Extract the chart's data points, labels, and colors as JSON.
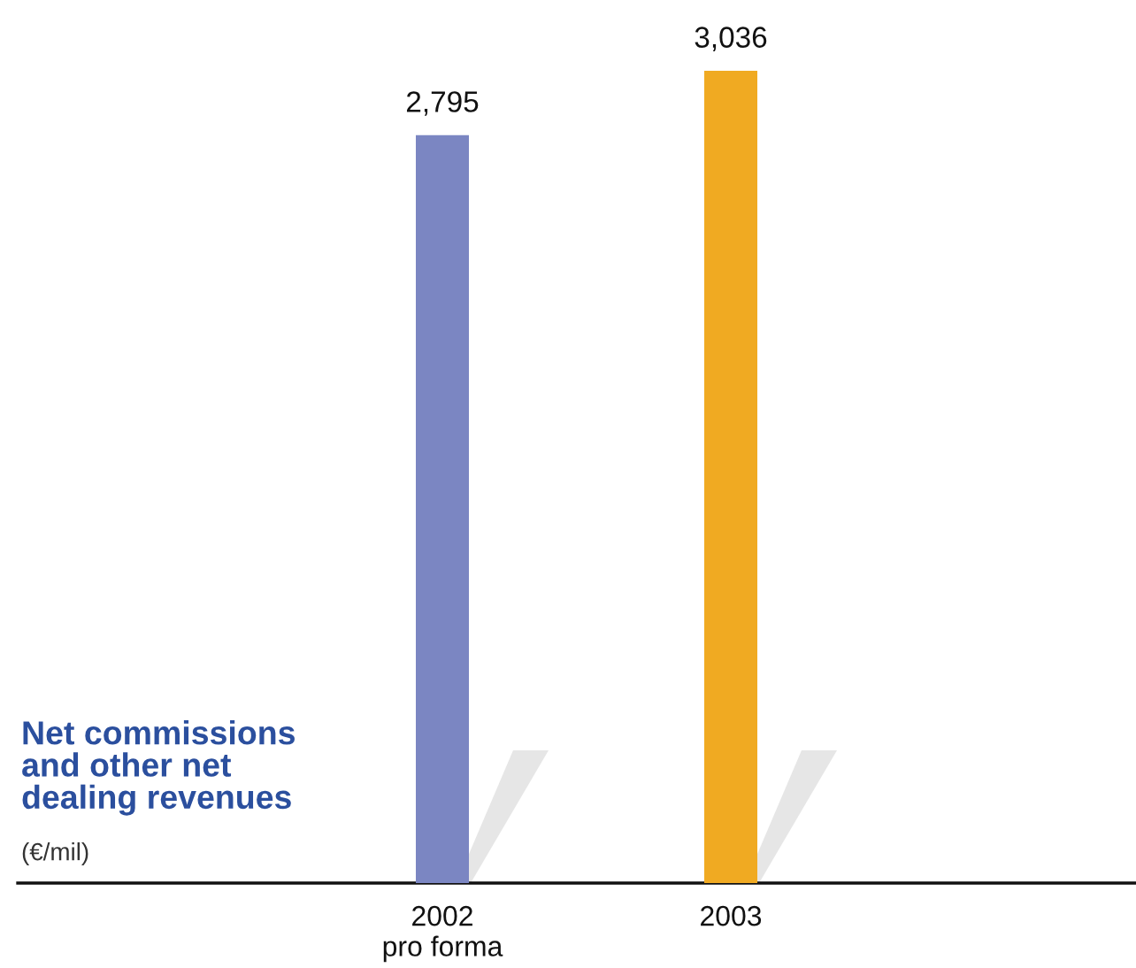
{
  "chart_data": {
    "type": "bar",
    "title": "Net commissions\nand other net\ndealing revenues",
    "subtitle": "(€/mil)",
    "categories": [
      "2002\npro forma",
      "2003"
    ],
    "values": [
      2795,
      3036
    ],
    "colors": [
      "#7b86c2",
      "#f0aa22"
    ],
    "value_labels": [
      "2,795",
      "3,036"
    ],
    "tick_labels": "x"
  }
}
